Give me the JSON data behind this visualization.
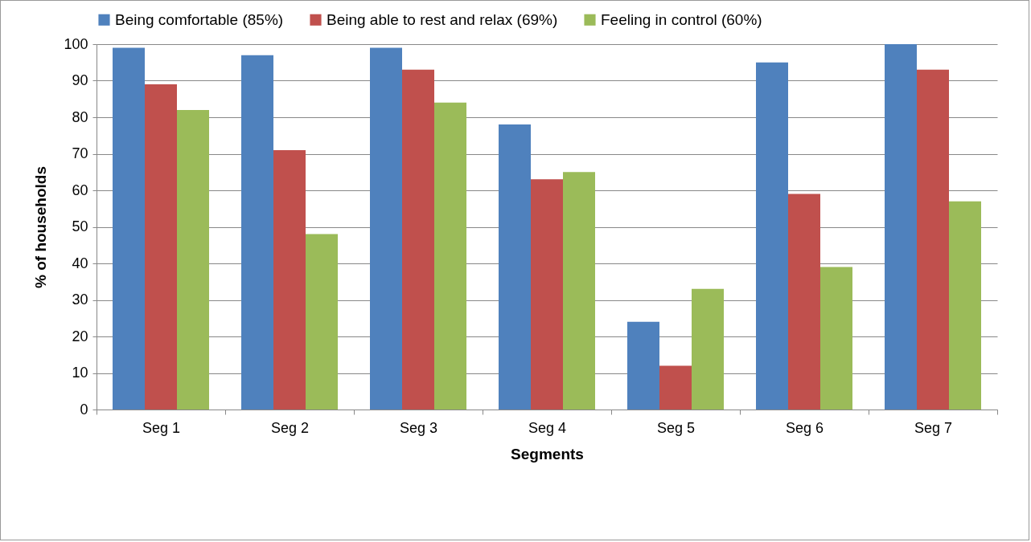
{
  "chart_data": {
    "type": "bar",
    "xlabel": "Segments",
    "ylabel": "% of households",
    "categories": [
      "Seg 1",
      "Seg 2",
      "Seg 3",
      "Seg 4",
      "Seg 5",
      "Seg 6",
      "Seg 7"
    ],
    "series": [
      {
        "name": "Being comfortable (85%)",
        "color": "#4f81bd",
        "values": [
          99,
          97,
          99,
          78,
          24,
          95,
          100
        ]
      },
      {
        "name": "Being able to rest and relax (69%)",
        "color": "#c0504d",
        "values": [
          89,
          71,
          93,
          63,
          12,
          59,
          93
        ]
      },
      {
        "name": "Feeling in control (60%)",
        "color": "#9bbb59",
        "values": [
          82,
          48,
          84,
          65,
          33,
          39,
          57
        ]
      }
    ],
    "ylim": [
      0,
      100
    ],
    "yticks": [
      0,
      10,
      20,
      30,
      40,
      50,
      60,
      70,
      80,
      90,
      100
    ],
    "grid": "y",
    "legend": "top"
  }
}
